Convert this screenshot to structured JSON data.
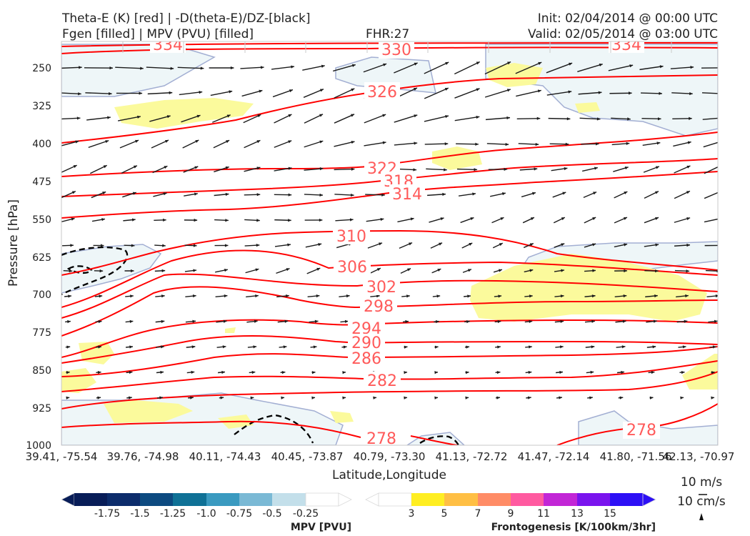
{
  "header": {
    "title_left_1": "Theta-E (K) [red] | -D(theta-E)/DZ-[black]",
    "title_left_2": "Fgen [filled] | MPV (PVU) [filled]",
    "fhr": "FHR:27",
    "init": "Init: 02/04/2014 @ 00:00 UTC",
    "valid": "Valid: 02/05/2014 @ 03:00 UTC"
  },
  "chart_data": {
    "type": "cross-section",
    "xlabel": "Latitude,Longitude",
    "ylabel": "Pressure [hPa]",
    "ylim": [
      1000,
      200
    ],
    "y_ticks": [
      "250",
      "325",
      "400",
      "475",
      "550",
      "625",
      "700",
      "775",
      "850",
      "925",
      "1000"
    ],
    "x_ticks": [
      "39.41, -75.54",
      "39.76, -74.98",
      "40.11, -74.43",
      "40.45, -73.87",
      "40.79, -73.30",
      "41.13, -72.72",
      "41.47, -72.14",
      "41.80, -71.56",
      "42.13, -70.97"
    ],
    "contour_labels": [
      "334",
      "330",
      "334",
      "326",
      "322",
      "318",
      "314",
      "310",
      "306",
      "302",
      "298",
      "294",
      "290",
      "286",
      "282",
      "278",
      "278"
    ],
    "wind_reference": {
      "label_1": "10 m/s",
      "label_2": "10 cm/s"
    },
    "colorbars": {
      "mpv": {
        "title": "MPV [PVU]",
        "ticks": [
          "-1.75",
          "-1.5",
          "-1.25",
          "-1.0",
          "-0.75",
          "-0.5",
          "-0.25"
        ],
        "colors": [
          "#081d58",
          "#0c2c6b",
          "#0d4a80",
          "#0f7196",
          "#3a9ac0",
          "#7ab9d5",
          "#c3dfea",
          "#ffffff"
        ]
      },
      "fgen": {
        "title": "Frontogenesis [K/100km/3hr]",
        "ticks": [
          "3",
          "5",
          "7",
          "9",
          "11",
          "13",
          "15"
        ],
        "colors": [
          "#ffffff",
          "#ffee22",
          "#ffbf44",
          "#ff8c66",
          "#ff5aa0",
          "#c226d6",
          "#7a14ee",
          "#2d10f5"
        ]
      }
    },
    "colors": {
      "theta_e": "#ff0000",
      "contour_label": "#ff5a5a",
      "fgen_fill": "#fbfa9c",
      "mpv_fill": "#eef6f8",
      "mpv_outline": "#a3afd3",
      "arrow": "#1a1a1a"
    }
  }
}
